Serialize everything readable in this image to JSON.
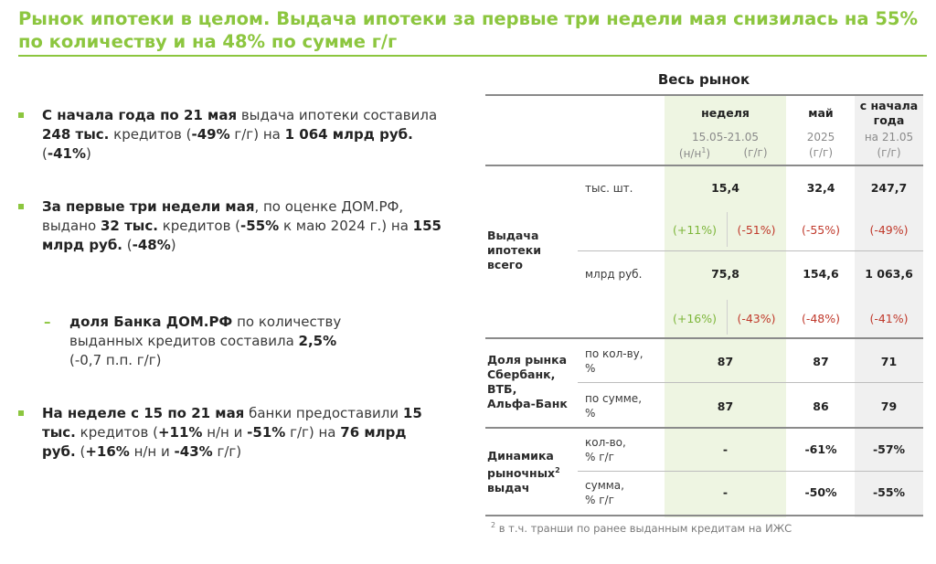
{
  "title": "Рынок ипотеки в целом. Выдача ипотеки за первые три недели мая снизилась на 55% по количеству и на 48% по сумме г/г",
  "bullets": [
    {
      "b1": "С начала года по 21 мая",
      "t1": " выдача ипотеки составила ",
      "b2": "248 тыс.",
      "t2": " кредитов (",
      "b3": "-49%",
      "t3": " г/г) на ",
      "b4": "1 064 млрд руб.",
      "t4": " (",
      "b5": "-41%",
      "t5": ")"
    },
    {
      "b1": "За первые три недели мая",
      "t1": ", по оценке ДОМ.РФ, выдано ",
      "b2": "32 тыс.",
      "t2": " кредитов (",
      "b3": "-55%",
      "t3": " к маю 2024 г.) на ",
      "b4": "155 млрд руб.",
      "t4": " (",
      "b5": "-48%",
      "t5": ")"
    },
    {
      "dash": "–",
      "b1": "доля Банка ДОМ.РФ",
      "t1": " по количеству выданных кредитов составила ",
      "b2": "2,5%",
      "t2": " (-0,7 п.п. г/г)"
    },
    {
      "b1": "На неделе с 15 по 21 мая",
      "t1": " банки предоставили ",
      "b2": "15 тыс.",
      "t2": " кредитов (",
      "b3": "+11%",
      "t3": " н/н и ",
      "b4": "-51%",
      "t4": " г/г) на ",
      "b5": "76 млрд руб.",
      "t5": " (",
      "b6": "+16%",
      "t6": " н/н и ",
      "b7": "-43%",
      "t7": " г/г)"
    }
  ],
  "table": {
    "title": "Весь рынок",
    "headers": {
      "week": "неделя",
      "week_period": "15.05-21.05",
      "week_nn": "(н/н",
      "week_nn_sup": "1",
      "week_nn_close": ")",
      "week_gg": "(г/г)",
      "may": "май",
      "may_year": "2025",
      "may_gg": "(г/г)",
      "ytd_l1": "с начала",
      "ytd_l2": "года",
      "ytd_date": "на 21.05",
      "ytd_gg": "(г/г)"
    },
    "section1": {
      "label_l1": "Выдача",
      "label_l2": "ипотеки",
      "label_l3": "всего",
      "units_count": "тыс. шт.",
      "count_week": "15,4",
      "count_may": "32,4",
      "count_ytd": "247,7",
      "count_nn": "(+11%)",
      "count_gg": "(-51%)",
      "count_may_gg": "(-55%)",
      "count_ytd_gg": "(-49%)",
      "units_sum": "млрд руб.",
      "sum_week": "75,8",
      "sum_may": "154,6",
      "sum_ytd": "1 063,6",
      "sum_nn": "(+16%)",
      "sum_gg": "(-43%)",
      "sum_may_gg": "(-48%)",
      "sum_ytd_gg": "(-41%)"
    },
    "section2": {
      "label_l1": "Доля рынка",
      "label_l2": "Сбербанк,",
      "label_l3": "ВТБ,",
      "label_l4": "Альфа-Банк",
      "u1_l1": "по кол-ву,",
      "u1_l2": "%",
      "r1_week": "87",
      "r1_may": "87",
      "r1_ytd": "71",
      "u2_l1": "по сумме,",
      "u2_l2": "%",
      "r2_week": "87",
      "r2_may": "86",
      "r2_ytd": "79"
    },
    "section3": {
      "label_l1": "Динамика",
      "label_l2": "рыночных",
      "label_sup": "2",
      "label_l3": "выдач",
      "u1_l1": "кол-во,",
      "u1_l2": "% г/г",
      "r1_week": "-",
      "r1_may": "-61%",
      "r1_ytd": "-57%",
      "u2_l1": "сумма,",
      "u2_l2": "% г/г",
      "r2_week": "-",
      "r2_may": "-50%",
      "r2_ytd": "-55%"
    },
    "footnote_sup": "2",
    "footnote": " в т.ч. транши по ранее выданным кредитам на ИЖС"
  },
  "colors": {
    "accent": "#8cc63f",
    "positive": "#7db63a",
    "negative": "#c0392b"
  }
}
